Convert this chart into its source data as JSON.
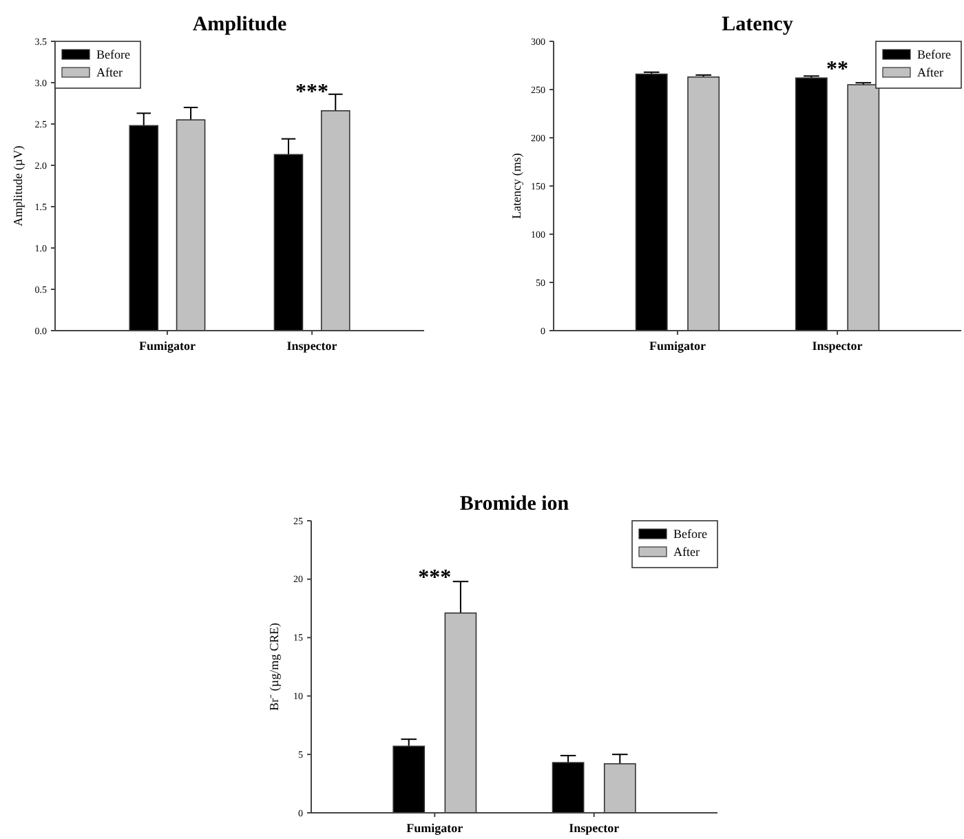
{
  "chart_data": [
    {
      "type": "bar",
      "title": "Amplitude",
      "ylabel": "Amplitude (µV)",
      "categories": [
        "Fumigator",
        "Inspector"
      ],
      "series": [
        {
          "name": "Before",
          "color": "#000000",
          "values": [
            2.48,
            2.13
          ],
          "errors": [
            0.15,
            0.19
          ]
        },
        {
          "name": "After",
          "color": "#c0c0c0",
          "values": [
            2.55,
            2.66
          ],
          "errors": [
            0.15,
            0.2
          ]
        }
      ],
      "ylim": [
        0,
        3.5
      ],
      "yticks": [
        {
          "value": 0,
          "label": "0.0"
        },
        {
          "value": 0.5,
          "label": "0.5"
        },
        {
          "value": 1,
          "label": "1.0"
        },
        {
          "value": 1.5,
          "label": "1.5"
        },
        {
          "value": 2,
          "label": "2.0"
        },
        {
          "value": 2.5,
          "label": "2.5"
        },
        {
          "value": 3,
          "label": "3.0"
        },
        {
          "value": 3.5,
          "label": "3.5"
        }
      ],
      "legend": "top left",
      "annotations": [
        "***"
      ]
    },
    {
      "type": "bar",
      "title": "Latency",
      "ylabel": "Latency (ms)",
      "categories": [
        "Fumigator",
        "Inspector"
      ],
      "series": [
        {
          "name": "Before",
          "color": "#000000",
          "values": [
            266,
            262
          ],
          "errors": [
            2,
            2
          ]
        },
        {
          "name": "After",
          "color": "#c0c0c0",
          "values": [
            263,
            255
          ],
          "errors": [
            2,
            2
          ]
        }
      ],
      "ylim": [
        0,
        300
      ],
      "yticks": [
        0,
        50,
        100,
        150,
        200,
        250,
        300
      ],
      "legend": "top right",
      "annotations": [
        "**"
      ]
    },
    {
      "type": "bar",
      "title": "Bromide ion",
      "ylabel": "Br⁻ (µg/mg CRE)",
      "categories": [
        "Fumigator",
        "Inspector"
      ],
      "series": [
        {
          "name": "Before",
          "color": "#000000",
          "values": [
            5.7,
            4.3
          ],
          "errors": [
            0.6,
            0.6
          ]
        },
        {
          "name": "After",
          "color": "#c0c0c0",
          "values": [
            17.1,
            4.2
          ],
          "errors": [
            2.7,
            0.8
          ]
        }
      ],
      "ylim": [
        0,
        25
      ],
      "yticks": [
        0,
        5,
        10,
        15,
        20,
        25
      ],
      "legend": "top right",
      "annotations": [
        "***"
      ]
    }
  ]
}
